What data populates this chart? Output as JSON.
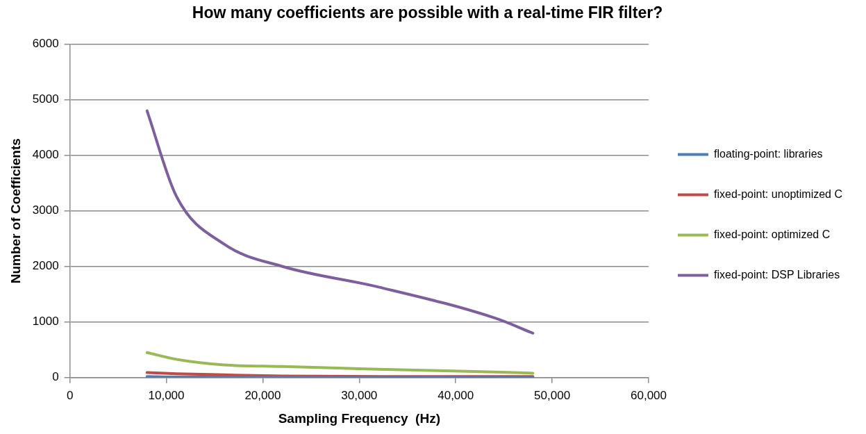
{
  "chart_data": {
    "type": "line",
    "title": "How many coefficients are possible with a real-time FIR filter?",
    "xlabel": "Sampling Frequency  (Hz)",
    "ylabel": "Number of Coefficients",
    "x": [
      8000,
      11025,
      16000,
      22050,
      32000,
      44100,
      48000
    ],
    "series": [
      {
        "name": "floating-point: libraries",
        "color": "#4a7ebb",
        "values": [
          20,
          10,
          10,
          10,
          0,
          0,
          0
        ]
      },
      {
        "name": "fixed-point: unoptimized C",
        "color": "#be4b48",
        "values": [
          90,
          70,
          50,
          30,
          20,
          20,
          20
        ]
      },
      {
        "name": "fixed-point: optimized C",
        "color": "#98b954",
        "values": [
          450,
          330,
          230,
          200,
          150,
          100,
          80
        ]
      },
      {
        "name": "fixed-point: DSP Libraries",
        "color": "#7d5fa0",
        "values": [
          4800,
          3270,
          2400,
          2000,
          1630,
          1070,
          800
        ]
      }
    ],
    "xlim": [
      0,
      60000
    ],
    "xticks": [
      {
        "value": 0,
        "label": "0"
      },
      {
        "value": 10000,
        "label": "10,000"
      },
      {
        "value": 20000,
        "label": "20,000"
      },
      {
        "value": 30000,
        "label": "30,000"
      },
      {
        "value": 40000,
        "label": "40,000"
      },
      {
        "value": 50000,
        "label": "50,000"
      },
      {
        "value": 60000,
        "label": "60,000"
      }
    ],
    "ylim": [
      0,
      6000
    ],
    "yticks": [
      0,
      1000,
      2000,
      3000,
      4000,
      5000,
      6000
    ],
    "grid": "y",
    "legend": "right",
    "marker": "none",
    "line_style": "solid"
  }
}
